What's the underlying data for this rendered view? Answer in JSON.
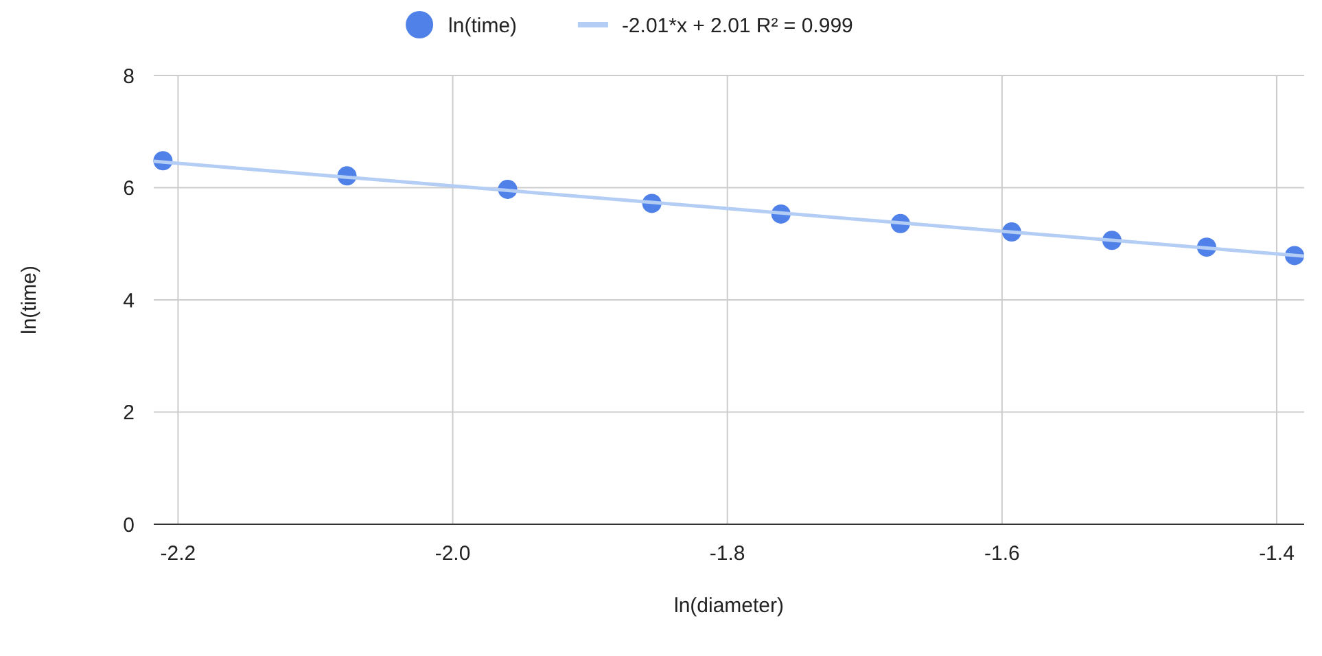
{
  "chart_data": {
    "type": "scatter",
    "xlabel": "ln(diameter)",
    "ylabel": "ln(time)",
    "xlim": [
      -2.2177,
      -1.38
    ],
    "xticks": [
      {
        "value": -2.2,
        "label": "-2.2"
      },
      {
        "value": -2,
        "label": "-2.0"
      },
      {
        "value": -1.8,
        "label": "-1.8"
      },
      {
        "value": -1.6,
        "label": "-1.6"
      },
      {
        "value": -1.4,
        "label": "-1.4"
      }
    ],
    "ylim": [
      0,
      8
    ],
    "yticks": [
      0,
      2,
      4,
      6,
      8
    ],
    "grid": true,
    "legend": "top",
    "series": [
      {
        "name": "ln(time)",
        "marker": "circle",
        "color": "#4f81e8",
        "x": [
          -2.211,
          -2.077,
          -1.96,
          -1.855,
          -1.761,
          -1.674,
          -1.593,
          -1.52,
          -1.451,
          -1.387
        ],
        "values": [
          6.48,
          6.21,
          5.97,
          5.72,
          5.53,
          5.36,
          5.21,
          5.06,
          4.94,
          4.79
        ]
      },
      {
        "name": "-2.01*x + 2.01 R² = 0.999",
        "type": "line",
        "marker": "none",
        "color": "#b3cdf5",
        "x": [
          -2.2177,
          -1.38
        ],
        "values": [
          6.47,
          4.78
        ]
      }
    ]
  }
}
